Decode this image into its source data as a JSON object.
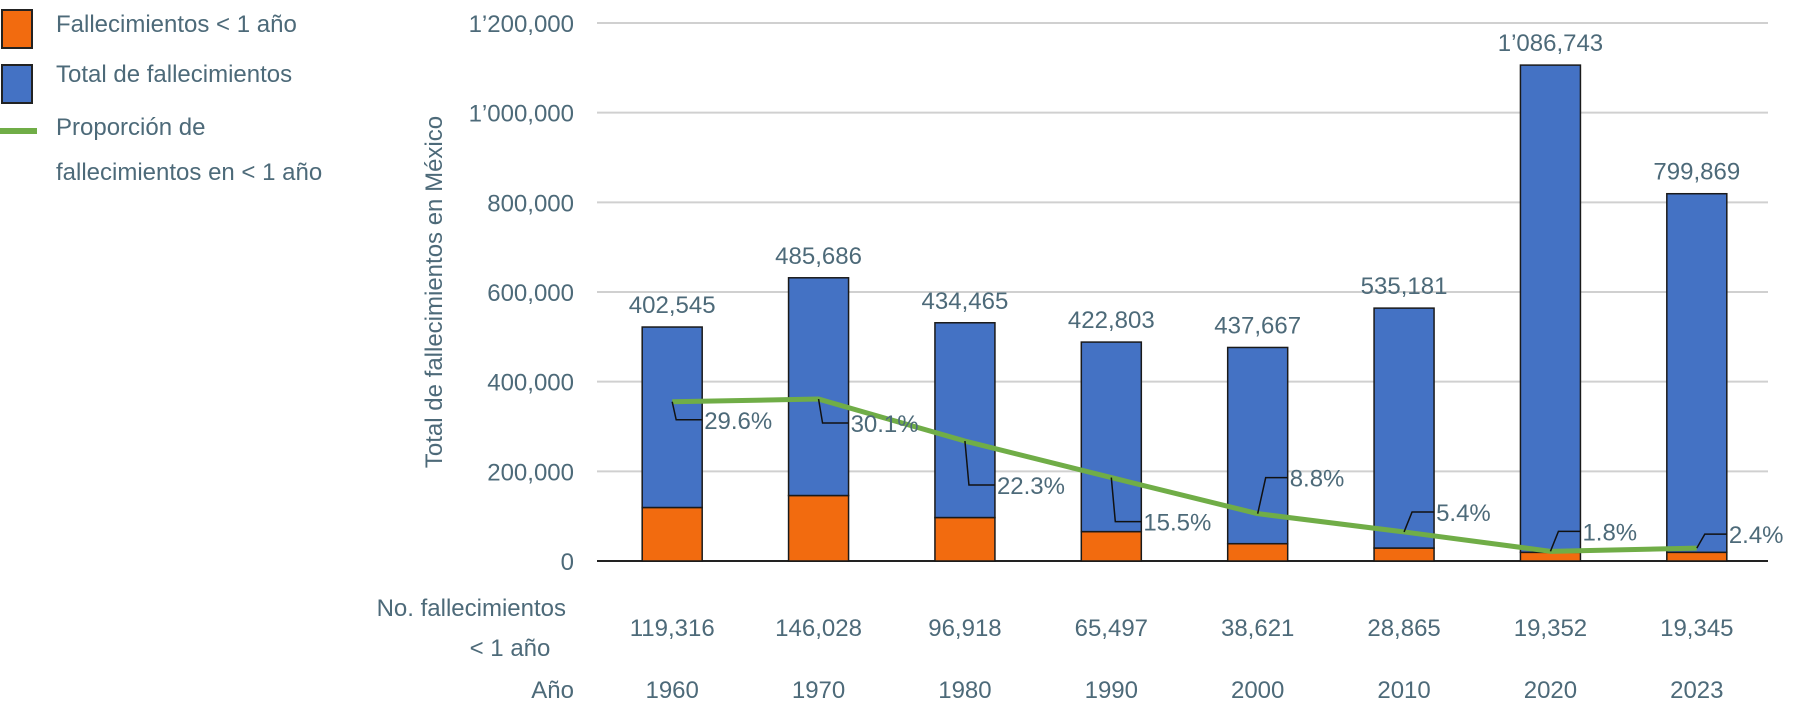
{
  "chart_data": {
    "type": "bar",
    "stacked": true,
    "categories_label": "Año",
    "categories": [
      "1960",
      "1970",
      "1980",
      "1990",
      "2000",
      "2010",
      "2020",
      "2023"
    ],
    "ylabel": "Total de fallecimientos en México",
    "ylim": [
      0,
      1200000
    ],
    "yticks": [
      {
        "value": 0,
        "label": "0"
      },
      {
        "value": 200000,
        "label": "200,000"
      },
      {
        "value": 400000,
        "label": "400,000"
      },
      {
        "value": 600000,
        "label": "600,000"
      },
      {
        "value": 800000,
        "label": "800,000"
      },
      {
        "value": 1000000,
        "label": "1’000,000"
      },
      {
        "value": 1200000,
        "label": "1’200,000"
      }
    ],
    "grid": true,
    "legend_placement": "left",
    "series": [
      {
        "name": "Fallecimientos < 1 año",
        "kind": "bar",
        "color": "#f26b0f",
        "values": [
          119316,
          146028,
          96918,
          65497,
          38621,
          28865,
          19352,
          19345
        ],
        "labels": [
          "119,316",
          "146,028",
          "96,918",
          "65,497",
          "38,621",
          "28,865",
          "19,352",
          "19,345"
        ]
      },
      {
        "name": "Total de fallecimientos",
        "kind": "bar",
        "color": "#4472c4",
        "values": [
          402545,
          485686,
          434465,
          422803,
          437667,
          535181,
          1086743,
          799869
        ],
        "labels": [
          "402,545",
          "485,686",
          "434,465",
          "422,803",
          "437,667",
          "535,181",
          "1’086,743",
          "799,869"
        ]
      },
      {
        "name": "Proporción de fallecimientos en < 1 año",
        "kind": "line",
        "color": "#70ad47",
        "secondary_ylim": [
          0,
          100
        ],
        "values": [
          29.6,
          30.1,
          22.3,
          15.5,
          8.8,
          5.4,
          1.8,
          2.4
        ],
        "labels": [
          "29.6%",
          "30.1%",
          "22.3%",
          "15.5%",
          "8.8%",
          "5.4%",
          "1.8%",
          "2.4%"
        ]
      }
    ],
    "legend": {
      "items": [
        {
          "label_lines": [
            "Fallecimientos < 1 año"
          ]
        },
        {
          "label_lines": [
            "Total de fallecimientos"
          ]
        },
        {
          "label_lines": [
            "Proporción de",
            "fallecimientos en < 1 año"
          ]
        }
      ]
    },
    "table_rows": {
      "count_label_lines": [
        "No. fallecimientos",
        "< 1 año"
      ],
      "year_label": "Año"
    }
  }
}
